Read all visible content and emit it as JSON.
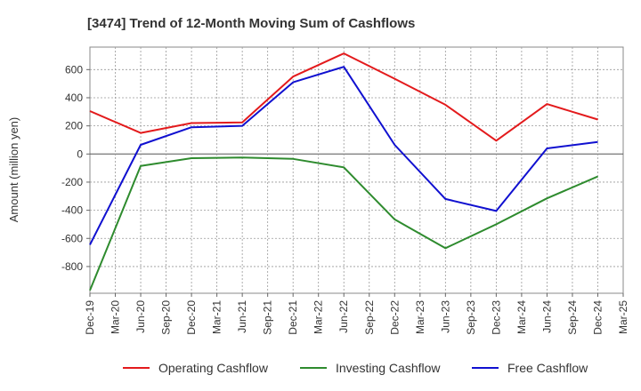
{
  "chart_data": {
    "type": "line",
    "title": "[3474]  Trend of 12-Month Moving Sum of Cashflows",
    "ylabel": "Amount (million yen)",
    "xlabel": "",
    "x_ticks": [
      "Dec-19",
      "Mar-20",
      "Jun-20",
      "Sep-20",
      "Dec-20",
      "Mar-21",
      "Jun-21",
      "Sep-21",
      "Dec-21",
      "Mar-22",
      "Jun-22",
      "Sep-22",
      "Dec-22",
      "Mar-23",
      "Jun-23",
      "Sep-23",
      "Dec-23",
      "Mar-24",
      "Jun-24",
      "Sep-24",
      "Dec-24",
      "Mar-25"
    ],
    "categories": [
      "Dec-19",
      "Jun-20",
      "Dec-20",
      "Jun-21",
      "Dec-21",
      "Jun-22",
      "Dec-22",
      "Jun-23",
      "Dec-23",
      "Jun-24",
      "Dec-24"
    ],
    "y_ticks": [
      600,
      400,
      200,
      0,
      -200,
      -400,
      -600,
      -800
    ],
    "ylim": [
      -990,
      760
    ],
    "grid": true,
    "legend_position": "bottom",
    "series": [
      {
        "name": "Operating Cashflow",
        "color": "#e31a1c",
        "values": [
          305,
          150,
          220,
          225,
          550,
          715,
          535,
          350,
          95,
          355,
          245
        ]
      },
      {
        "name": "Investing Cashflow",
        "color": "#2e8b2e",
        "values": [
          -970,
          -85,
          -30,
          -25,
          -35,
          -95,
          -465,
          -670,
          -500,
          -315,
          -160
        ]
      },
      {
        "name": "Free Cashflow",
        "color": "#1010d0",
        "values": [
          -645,
          65,
          190,
          200,
          510,
          620,
          65,
          -320,
          -405,
          40,
          85
        ]
      }
    ]
  }
}
